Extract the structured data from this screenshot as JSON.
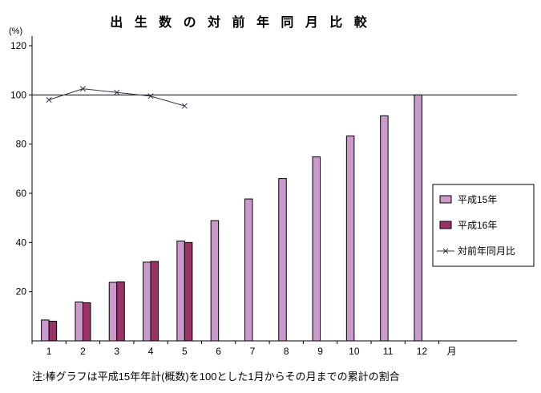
{
  "title": "出 生 数 の 対 前 年 同 月 比 較",
  "y_unit_label": "(%)",
  "x_unit_label": "月",
  "note": "注:棒グラフは平成15年年計(概数)を100とした1月からその月までの累計の割合",
  "colors": {
    "h15_bar": "#cc99cc",
    "h16_bar": "#993366",
    "line": "#333344",
    "axis": "#000000"
  },
  "legend": {
    "labels": [
      "平成15年",
      "平成16年",
      "対前年同月比"
    ]
  },
  "chart_data": {
    "type": "bar",
    "title": "出生数の対前年同月比較",
    "xlabel": "月",
    "ylabel": "(%)",
    "categories": [
      "1",
      "2",
      "3",
      "4",
      "5",
      "6",
      "7",
      "8",
      "9",
      "10",
      "11",
      "12"
    ],
    "series": [
      {
        "name": "平成15年",
        "type": "bar",
        "color": "#cc99cc",
        "values": [
          8.5,
          15.8,
          23.8,
          32.0,
          40.6,
          48.9,
          57.7,
          66.0,
          74.8,
          83.3,
          91.5,
          100.0
        ]
      },
      {
        "name": "平成16年",
        "type": "bar",
        "color": "#993366",
        "values": [
          8.0,
          15.5,
          24.0,
          32.3,
          40.0,
          null,
          null,
          null,
          null,
          null,
          null,
          null
        ]
      },
      {
        "name": "対前年同月比",
        "type": "line",
        "marker": "x",
        "color": "#333344",
        "values": [
          98.0,
          102.5,
          101.0,
          99.5,
          95.5,
          null,
          null,
          null,
          null,
          null,
          null,
          null
        ]
      }
    ],
    "ylim": [
      0,
      120
    ],
    "yticks": [
      20,
      40,
      60,
      80,
      100,
      120
    ],
    "reference_line": 100,
    "grid": false,
    "legend_position": "right-middle"
  }
}
